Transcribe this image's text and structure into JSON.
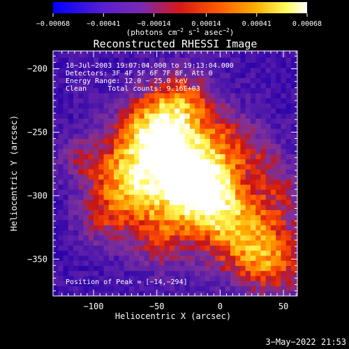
{
  "chart_data": {
    "type": "heatmap",
    "title": "Reconstructed RHESSI Image",
    "xlabel": "Heliocentric X (arcsec)",
    "ylabel": "Heliocentric Y (arcsec)",
    "xlim": [
      -132,
      61
    ],
    "ylim": [
      -379,
      -186
    ],
    "x_ticks": [
      -100,
      -50,
      0,
      50
    ],
    "x_tick_labels": [
      "−100",
      "−50",
      "0",
      "50"
    ],
    "y_ticks": [
      -200,
      -250,
      -300,
      -350
    ],
    "y_tick_labels": [
      "−200",
      "−250",
      "−300",
      "−350"
    ],
    "colorbar": {
      "vmin": -0.00068,
      "vmax": 0.00068,
      "ticks": [
        -0.00068,
        -0.00041,
        -0.00014,
        0.00014,
        0.00041,
        0.00068
      ],
      "tick_labels": [
        "−0.00068",
        "−0.00041",
        "−0.00014",
        "0.00014",
        "0.00041",
        "0.00068"
      ],
      "unit_parts": [
        "(photons cm",
        "−2",
        " s",
        "−1",
        " asec",
        "−2",
        ")"
      ]
    },
    "annotations": [
      "18−Jul−2003 19:07:04.000 to 19:13:04.000",
      "Detectors: 3F 4F 5F 6F 7F 8F, Att 0",
      "Energy Range: 12.0 − 25.0 keV",
      "Clean     Total counts: 9.16E+03"
    ],
    "peak_label": "Position of Peak = [−14,−294]",
    "peak_position": [
      -14,
      -294
    ],
    "peak_value": 0.00068,
    "colormap": "rainbow (blue-purple-red-orange-yellow-white)"
  },
  "footer": {
    "date": "3−May−2022 21:53"
  }
}
